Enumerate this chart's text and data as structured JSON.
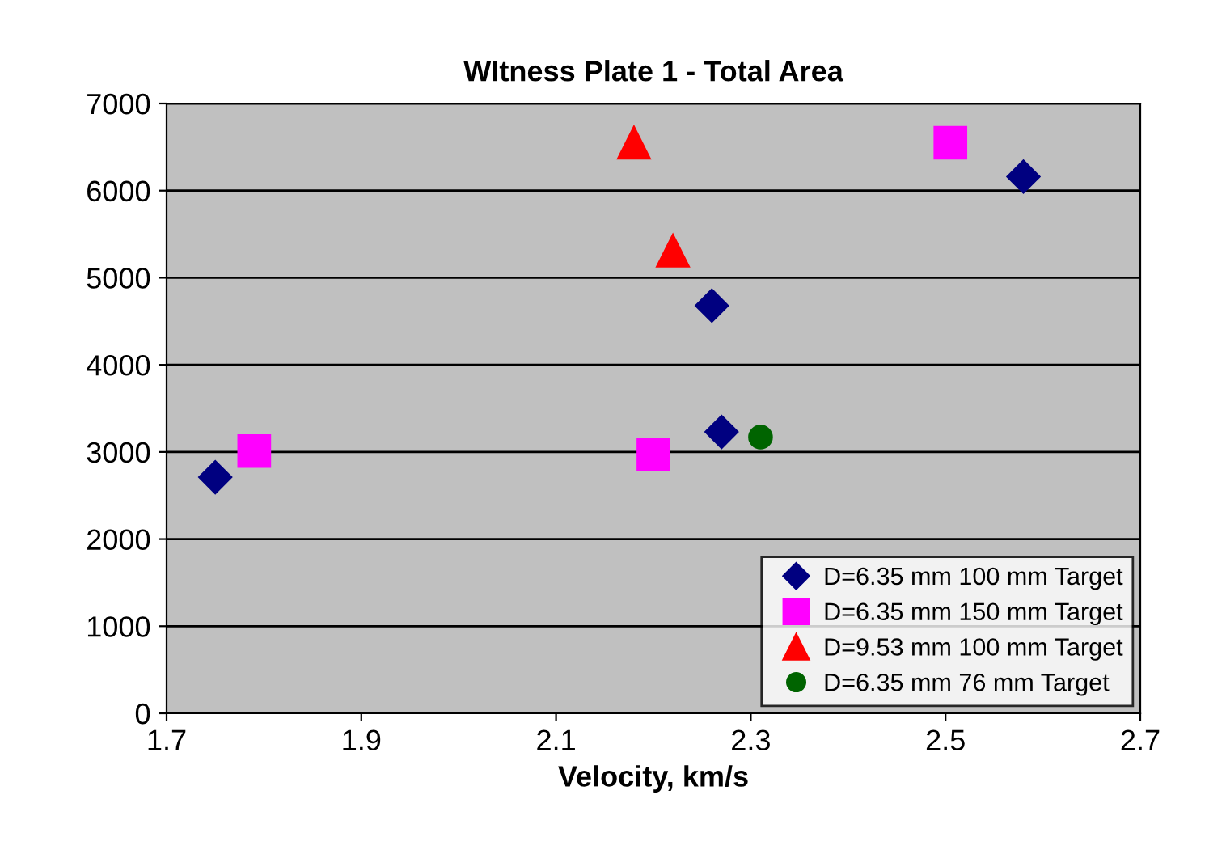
{
  "chart_data": {
    "type": "scatter",
    "title": "WItness Plate 1 - Total Area",
    "xlabel": "Velocity, km/s",
    "xlim": [
      1.7,
      2.7
    ],
    "xticks": [
      1.7,
      1.9,
      2.1,
      2.3,
      2.5,
      2.7
    ],
    "ylim": [
      0,
      7000
    ],
    "yticks": [
      0,
      1000,
      2000,
      3000,
      4000,
      5000,
      6000,
      7000
    ],
    "grid": "y",
    "legend": "bottom right",
    "series": [
      {
        "name": "D=6.35 mm 100 mm Target",
        "color": "#000080",
        "marker": "diamond",
        "x": [
          1.75,
          2.26,
          2.27,
          2.58
        ],
        "values": [
          2710,
          4680,
          3230,
          6160
        ]
      },
      {
        "name": "D=6.35 mm 150 mm Target",
        "color": "#ff00ff",
        "marker": "square",
        "x": [
          1.79,
          2.2,
          2.505
        ],
        "values": [
          3010,
          2970,
          6550
        ]
      },
      {
        "name": "D=9.53 mm 100 mm Target",
        "color": "#ff0000",
        "marker": "triangle",
        "x": [
          2.18,
          2.22
        ],
        "values": [
          6550,
          5310
        ]
      },
      {
        "name": "D=6.35 mm 76 mm Target",
        "color": "#006400",
        "marker": "circle",
        "x": [
          2.31
        ],
        "values": [
          3170
        ]
      }
    ]
  }
}
